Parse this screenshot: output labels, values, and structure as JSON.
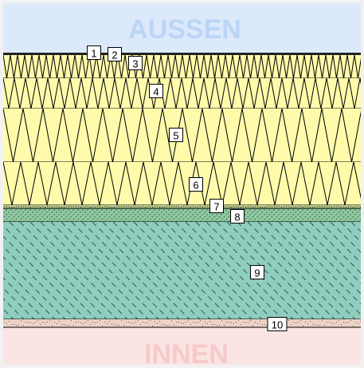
{
  "outside_label": "AUSSEN",
  "inside_label": "INNEN",
  "colors": {
    "outside": "#dce9fb",
    "outside_text": "#bcd5f7",
    "inside": "#fbe4e4",
    "inside_text": "#f7c9c9",
    "insulation": "#fffbab",
    "mineral_layer": "#8fc7a0",
    "concrete": "#8fcdbe",
    "plaster": "#ecd2c4"
  },
  "layers": [
    {
      "number": "1"
    },
    {
      "number": "2"
    },
    {
      "number": "3"
    },
    {
      "number": "4"
    },
    {
      "number": "5"
    },
    {
      "number": "6"
    },
    {
      "number": "7"
    },
    {
      "number": "8"
    },
    {
      "number": "9"
    },
    {
      "number": "10"
    }
  ]
}
